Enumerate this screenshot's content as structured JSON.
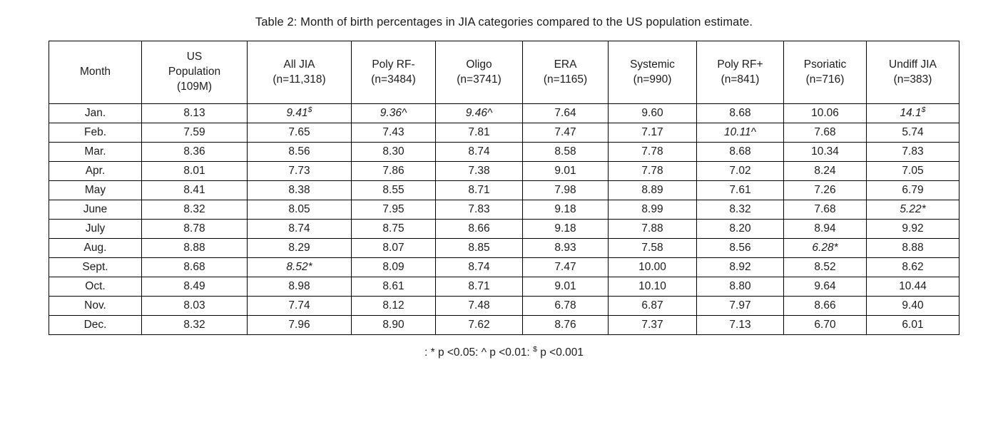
{
  "title": "Table 2: Month of birth percentages in JIA categories compared to the US population estimate.",
  "table": {
    "headers": [
      {
        "id": "month",
        "lines": [
          "Month"
        ]
      },
      {
        "id": "us-population",
        "lines": [
          "US",
          "Population",
          "(109M)"
        ]
      },
      {
        "id": "all-jia",
        "lines": [
          "All JIA",
          "(n=11,318)"
        ]
      },
      {
        "id": "poly-rf-neg",
        "lines": [
          "Poly RF-",
          "(n=3484)"
        ]
      },
      {
        "id": "oligo",
        "lines": [
          "Oligo",
          "(n=3741)"
        ]
      },
      {
        "id": "era",
        "lines": [
          "ERA",
          "(n=1165)"
        ]
      },
      {
        "id": "systemic",
        "lines": [
          "Systemic",
          "(n=990)"
        ]
      },
      {
        "id": "poly-rf-pos",
        "lines": [
          "Poly RF+",
          "(n=841)"
        ]
      },
      {
        "id": "psoriatic",
        "lines": [
          "Psoriatic",
          "(n=716)"
        ]
      },
      {
        "id": "undiff-jia",
        "lines": [
          "Undiff JIA",
          "(n=383)"
        ]
      }
    ],
    "rows": [
      {
        "month": "Jan.",
        "cells": [
          "8.13",
          {
            "value": "9.41",
            "marker": "$"
          },
          {
            "value": "9.36",
            "marker": "^"
          },
          {
            "value": "9.46",
            "marker": "^"
          },
          "7.64",
          "9.60",
          "8.68",
          "10.06",
          {
            "value": "14.1",
            "marker": "$"
          }
        ]
      },
      {
        "month": "Feb.",
        "cells": [
          "7.59",
          "7.65",
          "7.43",
          "7.81",
          "7.47",
          "7.17",
          {
            "value": "10.11",
            "marker": "^"
          },
          "7.68",
          "5.74"
        ]
      },
      {
        "month": "Mar.",
        "cells": [
          "8.36",
          "8.56",
          "8.30",
          "8.74",
          "8.58",
          "7.78",
          "8.68",
          "10.34",
          "7.83"
        ]
      },
      {
        "month": "Apr.",
        "cells": [
          "8.01",
          "7.73",
          "7.86",
          "7.38",
          "9.01",
          "7.78",
          "7.02",
          "8.24",
          "7.05"
        ]
      },
      {
        "month": "May",
        "cells": [
          "8.41",
          "8.38",
          "8.55",
          "8.71",
          "7.98",
          "8.89",
          "7.61",
          "7.26",
          "6.79"
        ]
      },
      {
        "month": "June",
        "cells": [
          "8.32",
          "8.05",
          "7.95",
          "7.83",
          "9.18",
          "8.99",
          "8.32",
          "7.68",
          {
            "value": "5.22",
            "marker": "*"
          }
        ]
      },
      {
        "month": "July",
        "cells": [
          "8.78",
          "8.74",
          "8.75",
          "8.66",
          "9.18",
          "7.88",
          "8.20",
          "8.94",
          "9.92"
        ]
      },
      {
        "month": "Aug.",
        "cells": [
          "8.88",
          "8.29",
          "8.07",
          "8.85",
          "8.93",
          "7.58",
          "8.56",
          {
            "value": "6.28",
            "marker": "*"
          },
          "8.88"
        ]
      },
      {
        "month": "Sept.",
        "cells": [
          "8.68",
          {
            "value": "8.52",
            "marker": "*"
          },
          "8.09",
          "8.74",
          "7.47",
          "10.00",
          "8.92",
          "8.52",
          "8.62"
        ]
      },
      {
        "month": "Oct.",
        "cells": [
          "8.49",
          "8.98",
          "8.61",
          "8.71",
          "9.01",
          "10.10",
          "8.80",
          "9.64",
          "10.44"
        ]
      },
      {
        "month": "Nov.",
        "cells": [
          "8.03",
          "7.74",
          "8.12",
          "7.48",
          "6.78",
          "6.87",
          "7.97",
          "8.66",
          "9.40"
        ]
      },
      {
        "month": "Dec.",
        "cells": [
          "8.32",
          "7.96",
          "8.90",
          "7.62",
          "8.76",
          "7.37",
          "7.13",
          "6.70",
          "6.01"
        ]
      }
    ]
  },
  "footnote": {
    "part1": ": * p <0.05: ^ p <0.01: ",
    "sup": "$",
    "part2": " p <0.001"
  }
}
